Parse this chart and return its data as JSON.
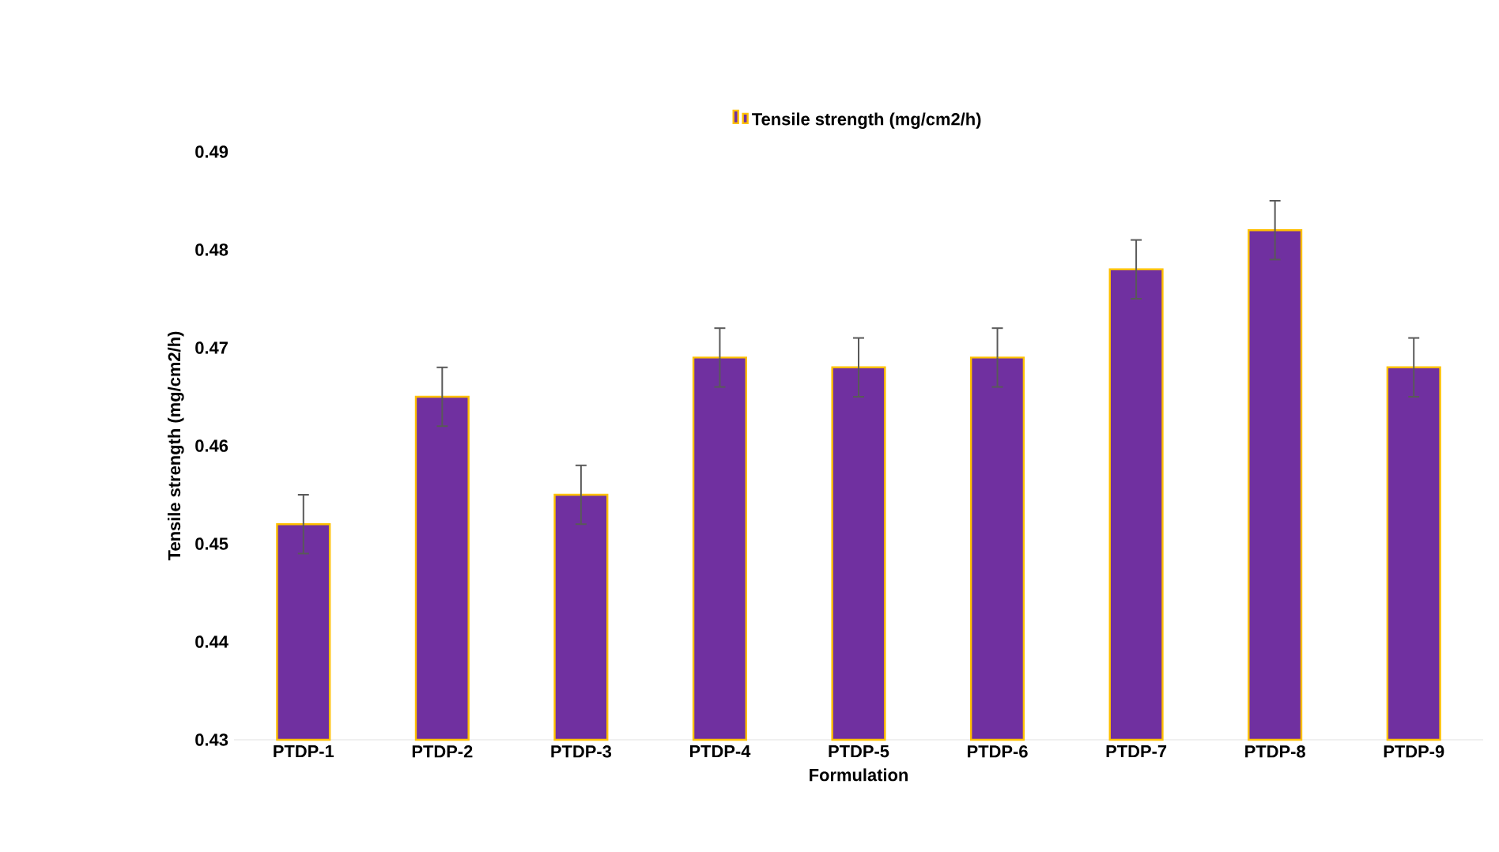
{
  "chart_data": {
    "type": "bar",
    "xlabel": "Formulation",
    "ylabel": "Tensile strength (mg/cm2/h)",
    "categories": [
      "PTDP-1",
      "PTDP-2",
      "PTDP-3",
      "PTDP-4",
      "PTDP-5",
      "PTDP-6",
      "PTDP-7",
      "PTDP-8",
      "PTDP-9"
    ],
    "series": [
      {
        "name": "Tensile strength (mg/cm2/h)",
        "color": "#7030a0",
        "values": [
          0.452,
          0.465,
          0.455,
          0.469,
          0.468,
          0.469,
          0.478,
          0.482,
          0.468
        ],
        "errors": [
          0.003,
          0.003,
          0.003,
          0.003,
          0.003,
          0.003,
          0.003,
          0.003,
          0.003
        ]
      }
    ],
    "ylim": [
      0.43,
      0.49
    ],
    "yticks": [
      0.43,
      0.44,
      0.45,
      0.46,
      0.47,
      0.48,
      0.49
    ],
    "legend": "top"
  }
}
